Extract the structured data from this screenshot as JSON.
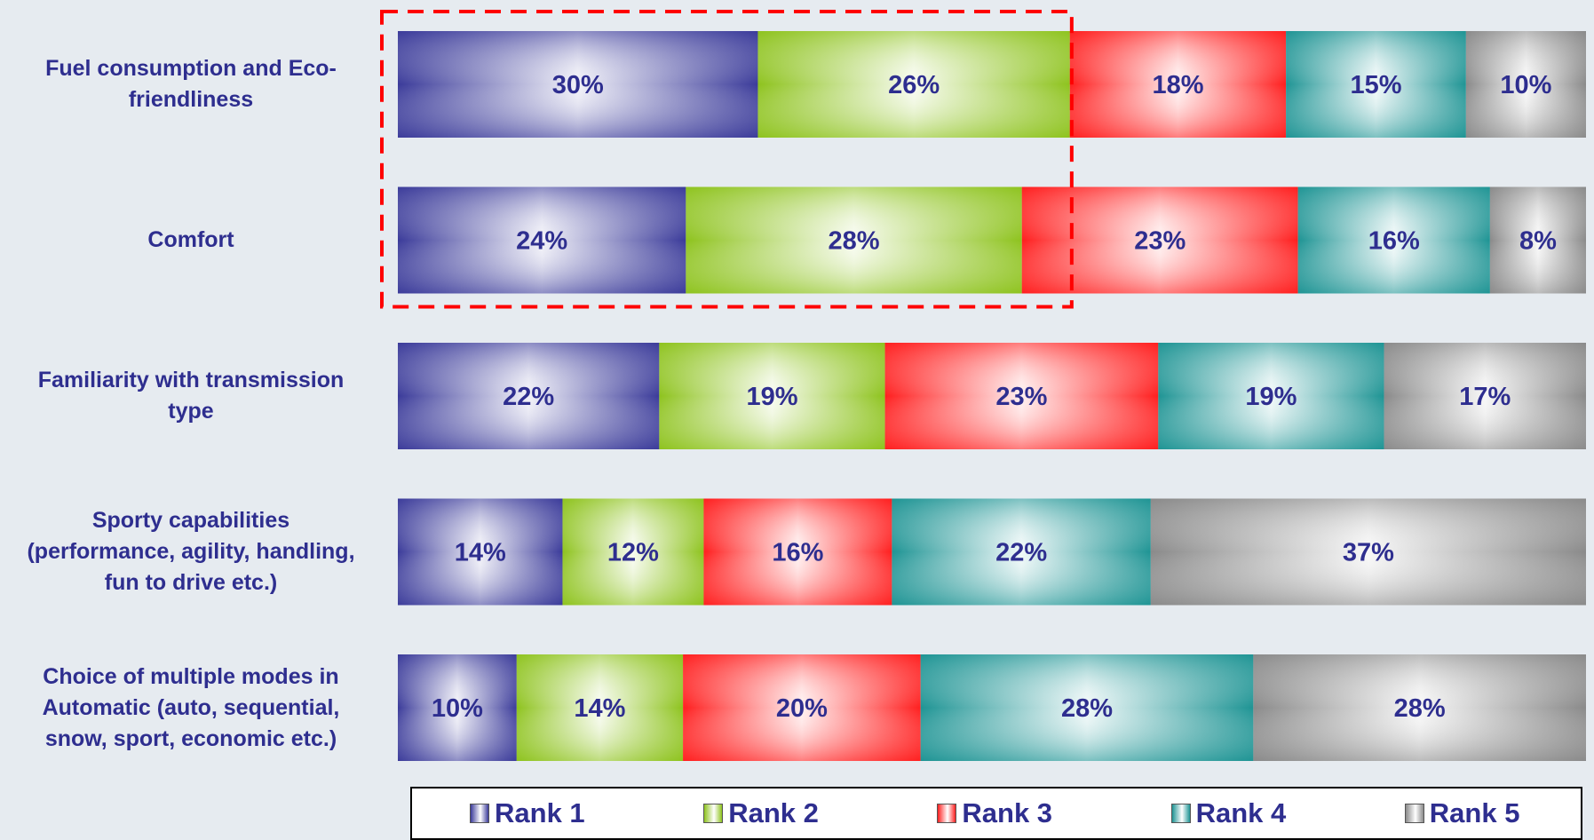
{
  "chart_data": {
    "type": "bar",
    "orientation": "horizontal",
    "stacked": true,
    "percent": true,
    "title": "",
    "xlabel": "",
    "ylabel": "",
    "categories": [
      "Fuel consumption and Eco-friendliness",
      "Comfort",
      "Familiarity with transmission type",
      "Sporty capabilities (performance, agility, handling, fun to drive etc.)",
      "Choice of multiple modes in Automatic (auto, sequential, snow, sport, economic etc.)"
    ],
    "category_label_lines": [
      [
        "Fuel consumption and Eco-",
        "friendliness"
      ],
      [
        "Comfort"
      ],
      [
        "Familiarity with transmission",
        "type"
      ],
      [
        "Sporty capabilities",
        "(performance, agility, handling,",
        "fun to drive etc.)"
      ],
      [
        "Choice of multiple modes in",
        "Automatic (auto, sequential,",
        "snow, sport, economic etc.)"
      ]
    ],
    "series": [
      {
        "name": "Rank 1",
        "color": "#3b3b9a",
        "values": [
          30,
          24,
          22,
          14,
          10
        ]
      },
      {
        "name": "Rank 2",
        "color": "#8ec31e",
        "values": [
          26,
          28,
          19,
          12,
          14
        ]
      },
      {
        "name": "Rank 3",
        "color": "#ff1f1f",
        "values": [
          18,
          23,
          23,
          16,
          20
        ]
      },
      {
        "name": "Rank 4",
        "color": "#1e9494",
        "values": [
          15,
          16,
          19,
          22,
          28
        ]
      },
      {
        "name": "Rank 5",
        "color": "#8a8a8a",
        "values": [
          10,
          8,
          17,
          37,
          28
        ]
      }
    ],
    "highlight": {
      "style": "red dashed box",
      "categories": [
        "Fuel consumption and Eco-friendliness",
        "Comfort"
      ],
      "series": [
        "Rank 1",
        "Rank 2"
      ]
    },
    "legend": {
      "position": "bottom"
    },
    "label_color": "#2e2e8f"
  }
}
